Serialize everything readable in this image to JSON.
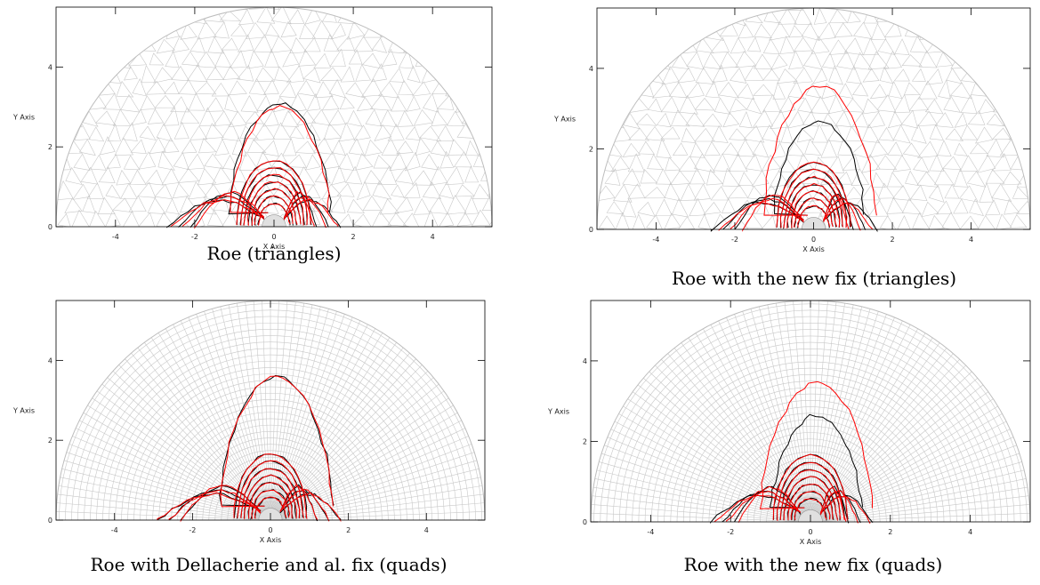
{
  "figure": {
    "panels": [
      {
        "id": "roe-tri",
        "caption": "Roe (triangles)",
        "mesh": "triangles",
        "xlabel": "X Axis",
        "ylabel": "Y Axis"
      },
      {
        "id": "newfix-tri",
        "caption": "Roe with the new fix (triangles)",
        "mesh": "triangles",
        "xlabel": "X Axis",
        "ylabel": "Y Axis"
      },
      {
        "id": "dell-quads",
        "caption": "Roe with Dellacherie and al. fix (quads)",
        "mesh": "quads",
        "xlabel": "X Axis",
        "ylabel": "Y Axis"
      },
      {
        "id": "newfix-quads",
        "caption": "Roe with the new fix (quads)",
        "mesh": "quads",
        "xlabel": "X Axis",
        "ylabel": "Y Axis"
      }
    ]
  },
  "chart_data": [
    {
      "type": "contour",
      "title": "Roe (triangles)",
      "mesh": "triangles",
      "xlabel": "X Axis",
      "ylabel": "Y Axis",
      "xlim": [
        -5.5,
        5.5
      ],
      "ylim": [
        0,
        5.5
      ],
      "xticks": [
        -4,
        -2,
        0,
        2,
        4
      ],
      "yticks": [
        0,
        2,
        4
      ],
      "domain_radius": 5.5,
      "obstacle_radius": 0.3,
      "series": [
        {
          "color": "#000000",
          "top_contour_height": 3.1,
          "lobe_extent": 2.7
        },
        {
          "color": "#ff0000",
          "top_contour_height": 3.0,
          "lobe_extent": 2.6
        }
      ]
    },
    {
      "type": "contour",
      "title": "Roe with the new fix (triangles)",
      "mesh": "triangles",
      "xlabel": "X Axis",
      "ylabel": "Y Axis",
      "xlim": [
        -5.5,
        5.5
      ],
      "ylim": [
        0,
        5.5
      ],
      "xticks": [
        -4,
        -2,
        0,
        2,
        4
      ],
      "yticks": [
        0,
        2,
        4
      ],
      "domain_radius": 5.5,
      "obstacle_radius": 0.3,
      "series": [
        {
          "color": "#000000",
          "top_contour_height": 2.7,
          "lobe_extent": 2.6
        },
        {
          "color": "#ff0000",
          "top_contour_height": 3.55,
          "lobe_extent": 2.4
        }
      ]
    },
    {
      "type": "contour",
      "title": "Roe with Dellacherie and al. fix (quads)",
      "mesh": "quads",
      "xlabel": "X Axis",
      "ylabel": "Y Axis",
      "xlim": [
        -5.5,
        5.5
      ],
      "ylim": [
        0,
        5.5
      ],
      "xticks": [
        -4,
        -2,
        0,
        2,
        4
      ],
      "yticks": [
        0,
        2,
        4
      ],
      "domain_radius": 5.5,
      "obstacle_radius": 0.3,
      "series": [
        {
          "color": "#000000",
          "top_contour_height": 3.6,
          "lobe_extent": 2.9
        },
        {
          "color": "#ff0000",
          "top_contour_height": 3.6,
          "lobe_extent": 2.9
        }
      ]
    },
    {
      "type": "contour",
      "title": "Roe with the new fix (quads)",
      "mesh": "quads",
      "xlabel": "X Axis",
      "ylabel": "Y Axis",
      "xlim": [
        -5.5,
        5.5
      ],
      "ylim": [
        0,
        5.5
      ],
      "xticks": [
        -4,
        -2,
        0,
        2,
        4
      ],
      "yticks": [
        0,
        2,
        4
      ],
      "domain_radius": 5.5,
      "obstacle_radius": 0.3,
      "series": [
        {
          "color": "#000000",
          "top_contour_height": 2.65,
          "lobe_extent": 2.5
        },
        {
          "color": "#ff0000",
          "top_contour_height": 3.45,
          "lobe_extent": 2.4
        }
      ]
    }
  ]
}
